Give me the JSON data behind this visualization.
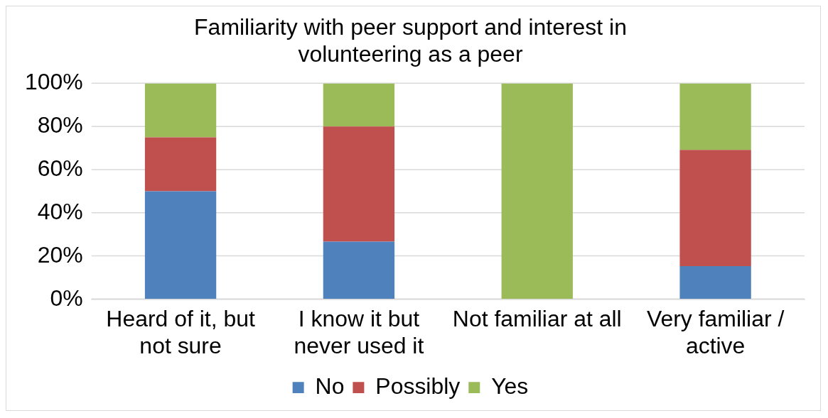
{
  "chart_data": {
    "type": "bar",
    "title": "Familiarity with peer support and interest in volunteering as a peer",
    "categories": [
      "Heard of it, but not sure",
      "I know it but never used it",
      "Not familiar at all",
      "Very familiar / active"
    ],
    "series": [
      {
        "name": "No",
        "color": "#4f81bd",
        "values": [
          50,
          26.7,
          0,
          15.4
        ]
      },
      {
        "name": "Possibly",
        "color": "#c0504d",
        "values": [
          25,
          53.3,
          0,
          53.8
        ]
      },
      {
        "name": "Yes",
        "color": "#9bbb59",
        "values": [
          25,
          20,
          100,
          30.8
        ]
      }
    ],
    "stacked": true,
    "ylim": [
      0,
      100
    ],
    "yticks": [
      {
        "value": 0,
        "label": "0%"
      },
      {
        "value": 20,
        "label": "20%"
      },
      {
        "value": 40,
        "label": "40%"
      },
      {
        "value": 60,
        "label": "60%"
      },
      {
        "value": 80,
        "label": "80%"
      },
      {
        "value": 100,
        "label": "100%"
      }
    ],
    "grid": "y",
    "legend": "bottom"
  }
}
